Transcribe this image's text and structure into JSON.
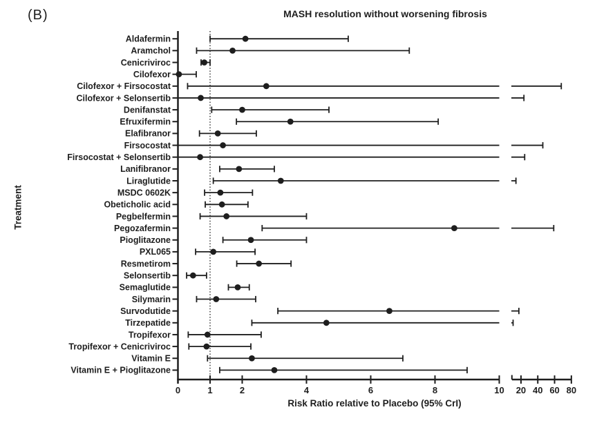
{
  "panel_label": "(B)",
  "colors": {
    "ink": "#1e1e1e",
    "background": "#ffffff"
  },
  "chart_data": {
    "type": "scatter",
    "subtype": "forest-plot",
    "title": "MASH resolution without worsening fibrosis",
    "xlabel": "Risk Ratio relative to Placebo (95% CrI)",
    "ylabel": "Treatment",
    "reference_line_x": 1,
    "grid": false,
    "x_axis": {
      "main_ticks": [
        0,
        1,
        2,
        4,
        6,
        8,
        10
      ],
      "main_range": [
        0,
        10
      ],
      "secondary_ticks": [
        20,
        40,
        60,
        80
      ],
      "secondary_range": [
        10,
        80
      ],
      "broken_axis": true
    },
    "treatments": [
      {
        "name": "Aldafermin",
        "rr": 2.1,
        "lower": 1.0,
        "upper": 5.3
      },
      {
        "name": "Aramchol",
        "rr": 1.7,
        "lower": 0.58,
        "upper": 7.2
      },
      {
        "name": "Cenicriviroc",
        "rr": 0.82,
        "lower": 0.72,
        "upper": 1.0
      },
      {
        "name": "Cilofexor",
        "rr": 0.03,
        "lower": 0.0,
        "upper": 0.57
      },
      {
        "name": "Cilofexor + Firsocostat",
        "rr": 2.75,
        "lower": 0.3,
        "upper": 68
      },
      {
        "name": "Cilofexor + Selonsertib",
        "rr": 0.71,
        "lower": 0.01,
        "upper": 23.5
      },
      {
        "name": "Denifanstat",
        "rr": 2.0,
        "lower": 1.05,
        "upper": 4.7
      },
      {
        "name": "Efruxifermin",
        "rr": 3.5,
        "lower": 1.82,
        "upper": 8.1
      },
      {
        "name": "Elafibranor",
        "rr": 1.24,
        "lower": 0.67,
        "upper": 2.44
      },
      {
        "name": "Firsocostat",
        "rr": 1.4,
        "lower": 0.01,
        "upper": 46
      },
      {
        "name": "Firsocostat + Selonsertib",
        "rr": 0.69,
        "lower": 0.01,
        "upper": 24.4
      },
      {
        "name": "Lanifibranor",
        "rr": 1.9,
        "lower": 1.3,
        "upper": 3.0
      },
      {
        "name": "Liraglutide",
        "rr": 3.2,
        "lower": 1.1,
        "upper": 14
      },
      {
        "name": "MSDC 0602K",
        "rr": 1.32,
        "lower": 0.83,
        "upper": 2.32
      },
      {
        "name": "Obeticholic acid",
        "rr": 1.37,
        "lower": 0.85,
        "upper": 2.18
      },
      {
        "name": "Pegbelfermin",
        "rr": 1.51,
        "lower": 0.69,
        "upper": 4.0
      },
      {
        "name": "Pegozafermin",
        "rr": 8.6,
        "lower": 2.62,
        "upper": 59
      },
      {
        "name": "Pioglitazone",
        "rr": 2.27,
        "lower": 1.4,
        "upper": 4.0
      },
      {
        "name": "PXL065",
        "rr": 1.1,
        "lower": 0.55,
        "upper": 2.4
      },
      {
        "name": "Resmetirom",
        "rr": 2.52,
        "lower": 1.83,
        "upper": 3.52
      },
      {
        "name": "Selonsertib",
        "rr": 0.47,
        "lower": 0.27,
        "upper": 0.89
      },
      {
        "name": "Semaglutide",
        "rr": 1.86,
        "lower": 1.57,
        "upper": 2.22
      },
      {
        "name": "Silymarin",
        "rr": 1.19,
        "lower": 0.58,
        "upper": 2.42
      },
      {
        "name": "Survodutide",
        "rr": 6.58,
        "lower": 3.11,
        "upper": 17.5
      },
      {
        "name": "Tirzepatide",
        "rr": 4.62,
        "lower": 2.3,
        "upper": 10.6
      },
      {
        "name": "Tropifexor",
        "rr": 0.92,
        "lower": 0.32,
        "upper": 2.59
      },
      {
        "name": "Tropifexor + Cenicriviroc",
        "rr": 0.89,
        "lower": 0.34,
        "upper": 2.27
      },
      {
        "name": "Vitamin E",
        "rr": 2.3,
        "lower": 0.92,
        "upper": 7.0
      },
      {
        "name": "Vitamin E + Pioglitazone",
        "rr": 3.0,
        "lower": 1.3,
        "upper": 9.0
      }
    ]
  }
}
